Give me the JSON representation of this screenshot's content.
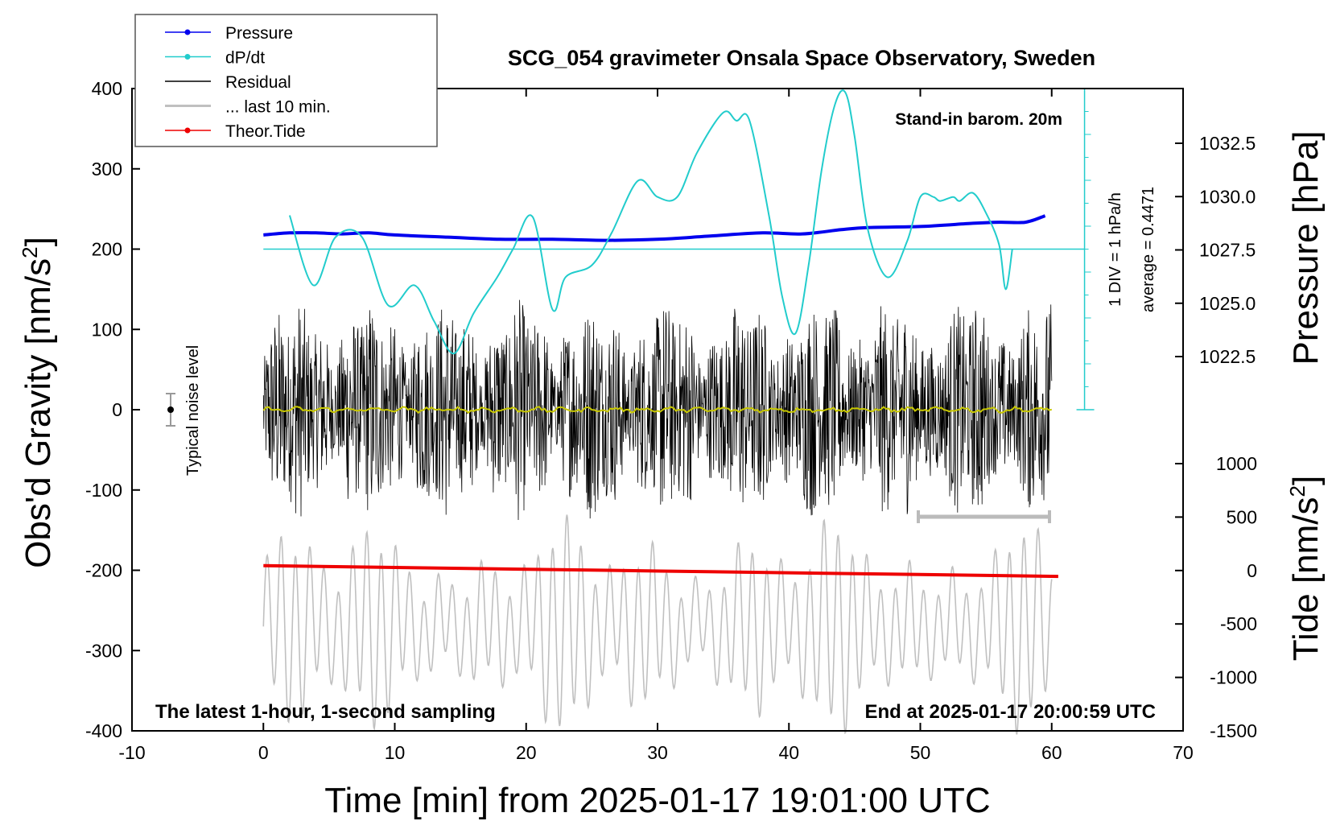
{
  "chart_data": {
    "type": "line",
    "title": "SCG_054 gravimeter Onsala Space Observatory, Sweden",
    "xlabel": "Time [min] from 2025-01-17 19:01:00 UTC",
    "ylabel_left": "Obs'd Gravity [nm/s",
    "ylabel_left_sup": "2",
    "ylabel_left_end": "]",
    "ylabel_right_top": "Pressure [hPa]",
    "ylabel_right_bottom": "Tide [nm/s",
    "ylabel_right_bottom_sup": "2",
    "ylabel_right_bottom_end": "]",
    "xlim": [
      -10,
      70
    ],
    "ylim": [
      -400,
      400
    ],
    "x_ticks": [
      "-10",
      "0",
      "10",
      "20",
      "30",
      "40",
      "50",
      "60",
      "70"
    ],
    "y_ticks": [
      "400",
      "300",
      "200",
      "100",
      "0",
      "-100",
      "-200",
      "-300",
      "-400"
    ],
    "pressure_ticks": [
      "1032.5",
      "1030.0",
      "1027.5",
      "1025.0",
      "1022.5"
    ],
    "pressure_tick_values": [
      1032.5,
      1030.0,
      1027.5,
      1025.0,
      1022.5
    ],
    "tide_ticks": [
      "1000",
      "500",
      "0",
      "-500",
      "-1000",
      "-1500"
    ],
    "tide_tick_values": [
      1000,
      500,
      0,
      -500,
      -1000,
      -1500
    ],
    "annotation_top_right": "Stand-in barom. 20m",
    "annotation_bottom_left": "The latest 1-hour, 1-second sampling",
    "annotation_bottom_right": "End at 2025-01-17 20:00:59 UTC",
    "scale_div_label": "1 DIV = 1 hPa/h",
    "scale_avg_label": "average = 0.4471",
    "noise_label": "Typical noise level",
    "legend": [
      {
        "label": "Pressure",
        "color": "#0000ee"
      },
      {
        "label": "dP/dt",
        "color": "#22cccc"
      },
      {
        "label": "Residual",
        "color": "#000000"
      },
      {
        "label": "... last 10 min.",
        "color": "#c0c0c0"
      },
      {
        "label": "Theor.Tide",
        "color": "#ee0000"
      }
    ],
    "series": [
      {
        "name": "Pressure",
        "unit": "hPa",
        "color": "#0000ee",
        "x": [
          0,
          2,
          4,
          6,
          8,
          10,
          14,
          18,
          22,
          26,
          30,
          34,
          38,
          41,
          44,
          46,
          50,
          54,
          56,
          58,
          59.5
        ],
        "values": [
          1028.2,
          1028.3,
          1028.3,
          1028.25,
          1028.3,
          1028.2,
          1028.1,
          1028.0,
          1028.0,
          1027.95,
          1028.0,
          1028.15,
          1028.3,
          1028.25,
          1028.45,
          1028.55,
          1028.6,
          1028.75,
          1028.8,
          1028.8,
          1029.1
        ]
      },
      {
        "name": "dP/dt",
        "unit": "scaled",
        "color": "#22cccc",
        "x": [
          2,
          3.8,
          5.5,
          7.5,
          9.5,
          11.5,
          13,
          14.5,
          16,
          17.8,
          19,
          20.5,
          22,
          23,
          25,
          26.5,
          28.5,
          30,
          31.5,
          33,
          35,
          36,
          37,
          38.5,
          39.5,
          40.5,
          41.5,
          42.5,
          43.5,
          44.3,
          45,
          46,
          47.5,
          49,
          50,
          51,
          51.5,
          52.5,
          53,
          54,
          55,
          56,
          56.5,
          57
        ],
        "values": [
          242,
          155,
          215,
          215,
          130,
          155,
          110,
          70,
          120,
          165,
          200,
          240,
          125,
          165,
          180,
          220,
          285,
          265,
          265,
          320,
          370,
          360,
          360,
          240,
          140,
          95,
          180,
          300,
          380,
          395,
          340,
          225,
          165,
          210,
          265,
          265,
          260,
          265,
          260,
          270,
          245,
          205,
          150,
          200
        ]
      },
      {
        "name": "Theor.Tide",
        "unit": "nm/s2",
        "color": "#ee0000",
        "x": [
          0,
          60.5
        ],
        "values": [
          45,
          -55
        ]
      }
    ]
  }
}
